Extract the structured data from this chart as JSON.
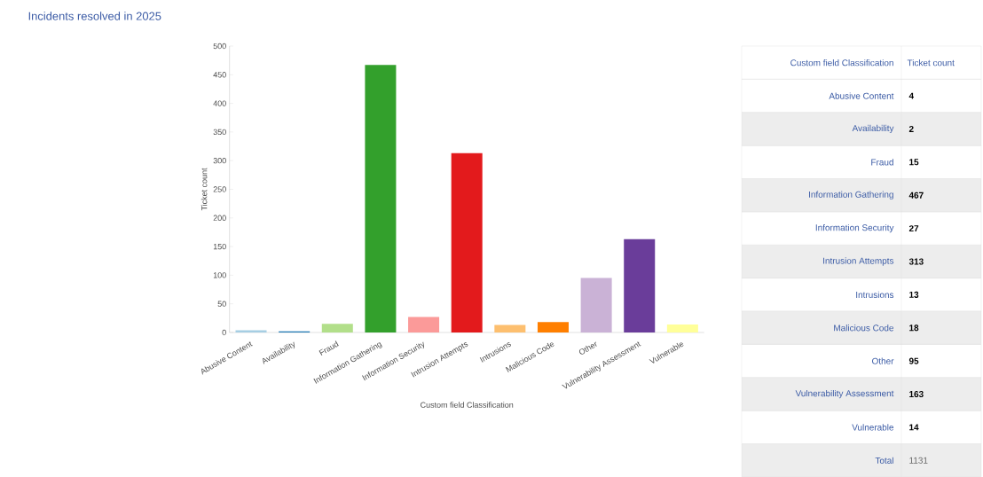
{
  "chart_data": [
    {
      "type": "bar",
      "title": "Incidents resolved in 2025",
      "xlabel": "Custom field Classification",
      "ylabel": "Ticket count",
      "categories": [
        "Abusive Content",
        "Availability",
        "Fraud",
        "Information Gathering",
        "Information Security",
        "Intrusion Attempts",
        "Intrusions",
        "Malicious Code",
        "Other",
        "Vulnerability Assessment",
        "Vulnerable"
      ],
      "values": [
        4,
        2,
        15,
        467,
        27,
        313,
        13,
        18,
        95,
        163,
        14
      ],
      "colors": [
        "#a6cee3",
        "#1f78b4",
        "#b2df8a",
        "#33a02c",
        "#fb9a99",
        "#e31a1c",
        "#fdbf6f",
        "#ff7f00",
        "#cab2d6",
        "#6a3d9a",
        "#ffff99"
      ],
      "ylim": [
        0,
        500
      ],
      "yticks": [
        0,
        50,
        100,
        150,
        200,
        250,
        300,
        350,
        400,
        450,
        500
      ]
    },
    {
      "type": "other",
      "xlabel": "Custom field Classification",
      "ylabel": "Ticket count",
      "categories": [
        "Abusive Content",
        "Availability",
        "Fraud",
        "Information Gathering",
        "Information Security",
        "Intrusion Attempts",
        "Intrusions",
        "Malicious Code",
        "Other",
        "Vulnerability Assessment",
        "Vulnerable"
      ],
      "value_labels": [
        "4",
        "2",
        "15",
        "467",
        "27",
        "313",
        "13",
        "18",
        "95",
        "163",
        "14"
      ],
      "annotations": [
        "Total",
        "1131"
      ]
    }
  ]
}
